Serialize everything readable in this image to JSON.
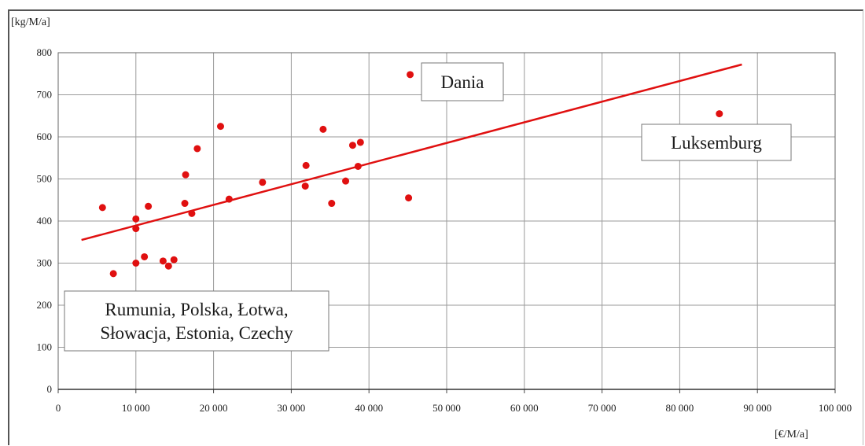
{
  "chart_data": {
    "type": "scatter",
    "ylabel": "[kg/M/a]",
    "xlabel": "[€/M/a]",
    "xlim": [
      0,
      100000
    ],
    "ylim": [
      0,
      800
    ],
    "x_ticks": [
      0,
      10000,
      20000,
      30000,
      40000,
      50000,
      60000,
      70000,
      80000,
      90000,
      100000
    ],
    "x_tick_labels": [
      "0",
      "10 000",
      "20 000",
      "30 000",
      "40 000",
      "50 000",
      "60 000",
      "70 000",
      "80 000",
      "90 000",
      "100 000"
    ],
    "y_ticks": [
      0,
      100,
      200,
      300,
      400,
      500,
      600,
      700,
      800
    ],
    "y_tick_labels": [
      "0",
      "100",
      "200",
      "300",
      "400",
      "500",
      "600",
      "700",
      "800"
    ],
    "grid": true,
    "point_color": "#e01010",
    "trend_color": "#e01010",
    "points": [
      {
        "x": 5700,
        "y": 432
      },
      {
        "x": 7100,
        "y": 275
      },
      {
        "x": 10000,
        "y": 405
      },
      {
        "x": 10000,
        "y": 382
      },
      {
        "x": 10000,
        "y": 300
      },
      {
        "x": 11100,
        "y": 315
      },
      {
        "x": 11600,
        "y": 435
      },
      {
        "x": 13500,
        "y": 305
      },
      {
        "x": 14200,
        "y": 293
      },
      {
        "x": 14900,
        "y": 308
      },
      {
        "x": 16300,
        "y": 442
      },
      {
        "x": 16400,
        "y": 510
      },
      {
        "x": 17200,
        "y": 418
      },
      {
        "x": 17900,
        "y": 572
      },
      {
        "x": 20900,
        "y": 625
      },
      {
        "x": 22000,
        "y": 452
      },
      {
        "x": 26300,
        "y": 492
      },
      {
        "x": 31800,
        "y": 483
      },
      {
        "x": 31900,
        "y": 532
      },
      {
        "x": 34100,
        "y": 618
      },
      {
        "x": 35200,
        "y": 442
      },
      {
        "x": 37000,
        "y": 495
      },
      {
        "x": 37900,
        "y": 580
      },
      {
        "x": 38600,
        "y": 530
      },
      {
        "x": 38900,
        "y": 587
      },
      {
        "x": 45100,
        "y": 455
      },
      {
        "x": 45300,
        "y": 748
      },
      {
        "x": 85100,
        "y": 655
      }
    ],
    "trendline": {
      "x": [
        3000,
        88000
      ],
      "y": [
        355,
        772
      ]
    },
    "annotations": [
      {
        "text": "Dania",
        "x": 50000,
        "y": 740
      },
      {
        "text": "Luksemburg",
        "x": 86000,
        "y": 585
      },
      {
        "text": "Rumunia, Polska, Łotwa,",
        "x": 25000,
        "y": 195
      },
      {
        "text": "Słowacja, Estonia, Czechy",
        "x": 25000,
        "y": 130
      }
    ]
  }
}
